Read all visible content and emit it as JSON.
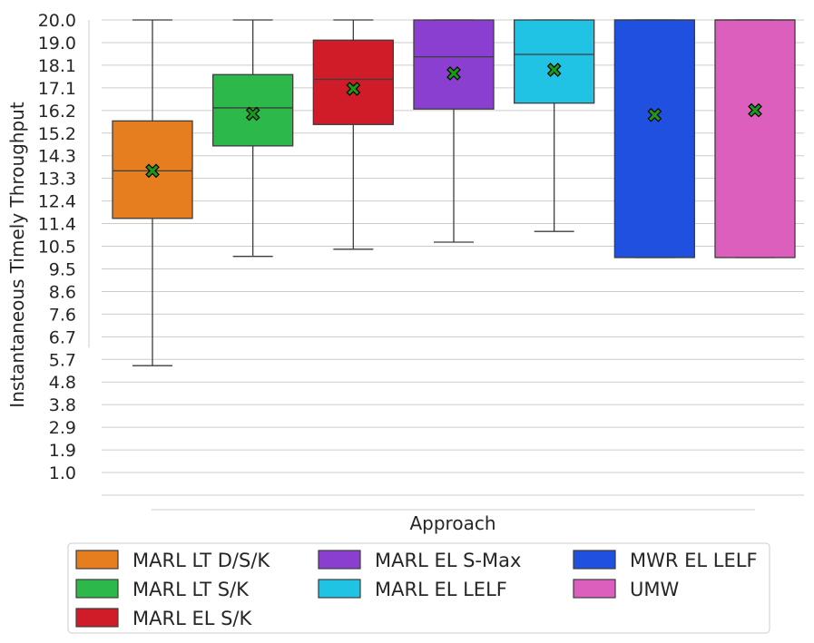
{
  "chart_data": {
    "type": "box",
    "title": "",
    "xlabel": "Approach",
    "ylabel": "Instantaneous Timely Throughput",
    "ylim": [
      0.0,
      20.0
    ],
    "yticks": [
      "1.0",
      "1.9",
      "2.9",
      "3.8",
      "4.8",
      "5.7",
      "6.7",
      "7.6",
      "8.6",
      "9.5",
      "10.5",
      "11.4",
      "12.4",
      "13.3",
      "14.3",
      "15.2",
      "16.2",
      "17.1",
      "18.1",
      "19.0",
      "20.0"
    ],
    "ytick_values": [
      0.952,
      1.905,
      2.857,
      3.81,
      4.762,
      5.714,
      6.667,
      7.619,
      8.571,
      9.524,
      10.476,
      11.429,
      12.381,
      13.333,
      14.286,
      15.238,
      16.19,
      17.143,
      18.095,
      19.048,
      20.0
    ],
    "grid": "horizontal",
    "legend_position": "bottom",
    "mean_marker_color": "#1a9a1a",
    "series": [
      {
        "name": "MARL LT D/S/K",
        "color": "#e67e1f",
        "whisker_low": 5.45,
        "q1": 11.65,
        "median": 13.65,
        "q3": 15.75,
        "whisker_high": 20.0,
        "mean": 13.65
      },
      {
        "name": "MARL LT S/K",
        "color": "#2db84a",
        "whisker_low": 10.05,
        "q1": 14.7,
        "median": 16.3,
        "q3": 17.7,
        "whisker_high": 20.0,
        "mean": 16.05
      },
      {
        "name": "MARL EL S/K",
        "color": "#d01c28",
        "whisker_low": 10.35,
        "q1": 15.6,
        "median": 17.5,
        "q3": 19.15,
        "whisker_high": 20.0,
        "mean": 17.1
      },
      {
        "name": "MARL EL S-Max",
        "color": "#8a3fd1",
        "whisker_low": 10.65,
        "q1": 16.25,
        "median": 18.45,
        "q3": 20.0,
        "whisker_high": 20.0,
        "mean": 17.75
      },
      {
        "name": "MARL EL LELF",
        "color": "#20c3e3",
        "whisker_low": 11.1,
        "q1": 16.5,
        "median": 18.55,
        "q3": 20.0,
        "whisker_high": 20.0,
        "mean": 17.9
      },
      {
        "name": "MWR EL LELF",
        "color": "#2050e0",
        "whisker_low": 10.0,
        "q1": 10.0,
        "median": 20.0,
        "q3": 20.0,
        "whisker_high": 20.0,
        "mean": 16.0
      },
      {
        "name": "UMW",
        "color": "#dc5fbd",
        "whisker_low": 10.0,
        "q1": 10.0,
        "median": 20.0,
        "q3": 20.0,
        "whisker_high": 20.0,
        "mean": 16.2
      }
    ]
  }
}
